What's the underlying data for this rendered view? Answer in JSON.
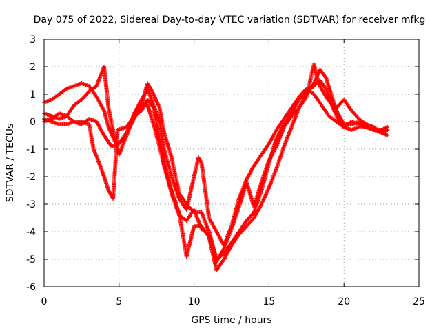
{
  "chart_data": {
    "type": "scatter",
    "title": "Day 075 of 2022, Sidereal Day-to-day VTEC variation (SDTVAR) for receiver mfkg",
    "xlabel": "GPS time / hours",
    "ylabel": "SDTVAR / TECUs",
    "xlim": [
      0,
      25
    ],
    "ylim": [
      -6,
      3
    ],
    "x_ticks": [
      0,
      5,
      10,
      15,
      20,
      25
    ],
    "y_ticks": [
      -6,
      -5,
      -4,
      -3,
      -2,
      -1,
      0,
      1,
      2,
      3
    ],
    "grid": true,
    "legend": "none",
    "marker": "plus",
    "series": [
      {
        "color": "#ff0000",
        "x": [
          0.0,
          0.5,
          1.0,
          1.5,
          2.0,
          2.5,
          3.0,
          3.5,
          4.0,
          4.3,
          4.7,
          5.0,
          5.5,
          6.0,
          6.5,
          6.9,
          7.3,
          7.7,
          8.0,
          8.5,
          9.0,
          9.5,
          10.0,
          10.5,
          11.0,
          11.5,
          12.0,
          12.5,
          13.0,
          13.5,
          14.0,
          14.5,
          15.0,
          15.5,
          16.0,
          16.5,
          17.0,
          17.5,
          18.0,
          18.4,
          18.8,
          19.2,
          19.5,
          20.0,
          20.5,
          21.0,
          21.5,
          22.0,
          22.5,
          22.9
        ],
        "y": [
          0.7,
          0.8,
          1.0,
          1.2,
          1.3,
          1.4,
          1.3,
          0.9,
          0.4,
          -0.2,
          -0.7,
          -0.8,
          -0.4,
          0.1,
          0.6,
          1.4,
          1.0,
          0.5,
          -0.4,
          -1.3,
          -2.6,
          -3.0,
          -3.3,
          -3.3,
          -4.0,
          -5.0,
          -4.8,
          -4.4,
          -4.0,
          -3.6,
          -3.3,
          -2.5,
          -1.5,
          -0.6,
          -0.1,
          0.3,
          0.8,
          1.1,
          1.3,
          1.5,
          1.2,
          0.6,
          0.2,
          -0.2,
          -0.3,
          -0.2,
          -0.2,
          -0.3,
          -0.3,
          -0.3
        ]
      },
      {
        "color": "#ff0000",
        "x": [
          0.0,
          0.5,
          1.0,
          1.5,
          2.0,
          2.5,
          3.0,
          3.5,
          4.0,
          4.3,
          4.7,
          5.0,
          5.5,
          6.0,
          6.5,
          6.9,
          7.3,
          7.7,
          8.0,
          8.5,
          9.0,
          9.5,
          10.0,
          10.5,
          11.0,
          11.5,
          12.0,
          12.5,
          13.0,
          13.5,
          14.0,
          14.5,
          15.0,
          15.5,
          16.0,
          16.5,
          17.0,
          17.5,
          18.0,
          18.4,
          18.8,
          19.2,
          19.5,
          20.0,
          20.5,
          21.0,
          21.5,
          22.0,
          22.5,
          22.9
        ],
        "y": [
          0.3,
          0.2,
          0.1,
          0.2,
          0.6,
          0.8,
          1.1,
          1.3,
          2.0,
          0.5,
          -0.6,
          -1.2,
          -0.5,
          0.2,
          0.4,
          0.8,
          0.5,
          -0.6,
          -1.5,
          -2.5,
          -3.3,
          -4.9,
          -3.8,
          -3.8,
          -4.2,
          -5.4,
          -5.0,
          -4.5,
          -4.1,
          -3.8,
          -3.5,
          -3.0,
          -2.4,
          -1.7,
          -0.9,
          -0.2,
          0.5,
          1.0,
          1.4,
          1.9,
          1.6,
          0.9,
          0.4,
          -0.1,
          -0.1,
          0.0,
          -0.2,
          -0.3,
          -0.4,
          -0.3
        ]
      },
      {
        "color": "#ff0000",
        "x": [
          0.0,
          0.5,
          1.0,
          1.5,
          2.0,
          2.5,
          3.0,
          3.3,
          3.6,
          4.0,
          4.3,
          4.6,
          4.9,
          5.5,
          6.0,
          6.5,
          6.9,
          7.3,
          7.7,
          8.0,
          8.5,
          9.0,
          9.5,
          10.0,
          10.5,
          11.0,
          11.5,
          12.0,
          12.5,
          13.0,
          13.5,
          14.0,
          14.5,
          15.0,
          15.5,
          16.0,
          16.5,
          17.0,
          17.5,
          18.0,
          18.3,
          18.8,
          19.2,
          19.5,
          20.0,
          20.5,
          21.0,
          21.5,
          22.0,
          22.5,
          22.9
        ],
        "y": [
          0.1,
          0.0,
          -0.1,
          -0.1,
          0.0,
          0.0,
          -0.1,
          -1.0,
          -1.4,
          -2.0,
          -2.5,
          -2.8,
          -0.3,
          -0.2,
          0.2,
          0.7,
          0.6,
          -0.1,
          -0.9,
          -1.6,
          -2.6,
          -3.4,
          -3.6,
          -3.2,
          -3.9,
          -4.1,
          -5.1,
          -4.6,
          -3.9,
          -3.1,
          -2.2,
          -3.1,
          -2.2,
          -1.4,
          -0.9,
          -0.2,
          0.2,
          0.5,
          0.9,
          2.1,
          1.4,
          0.9,
          0.6,
          0.5,
          0.8,
          0.4,
          0.1,
          -0.1,
          -0.2,
          -0.4,
          -0.5
        ]
      },
      {
        "color": "#ff0000",
        "x": [
          0.0,
          0.5,
          1.0,
          1.5,
          2.0,
          2.5,
          3.0,
          3.5,
          4.0,
          4.5,
          5.0,
          5.5,
          6.0,
          6.5,
          6.9,
          7.3,
          7.7,
          8.0,
          8.5,
          9.0,
          9.5,
          10.0,
          10.3,
          10.5,
          11.0,
          11.5,
          12.0,
          12.5,
          13.0,
          13.5,
          14.0,
          14.5,
          15.0,
          15.5,
          16.0,
          16.5,
          17.0,
          17.5,
          18.0,
          18.5,
          19.0,
          19.5,
          20.0,
          20.5,
          21.0,
          21.5,
          22.0,
          22.5,
          22.9
        ],
        "y": [
          0.0,
          0.1,
          0.3,
          0.2,
          0.0,
          -0.1,
          0.1,
          0.0,
          -0.5,
          -0.9,
          -0.8,
          -0.5,
          0.3,
          0.8,
          1.2,
          0.6,
          0.0,
          -1.0,
          -2.0,
          -2.8,
          -3.2,
          -2.0,
          -1.3,
          -1.5,
          -3.5,
          -4.0,
          -4.5,
          -3.8,
          -2.8,
          -2.1,
          -1.6,
          -1.2,
          -0.8,
          -0.3,
          0.1,
          0.5,
          0.9,
          1.2,
          1.0,
          0.6,
          0.2,
          0.0,
          -0.2,
          0.0,
          -0.1,
          -0.2,
          -0.3,
          -0.3,
          -0.2
        ]
      }
    ]
  }
}
